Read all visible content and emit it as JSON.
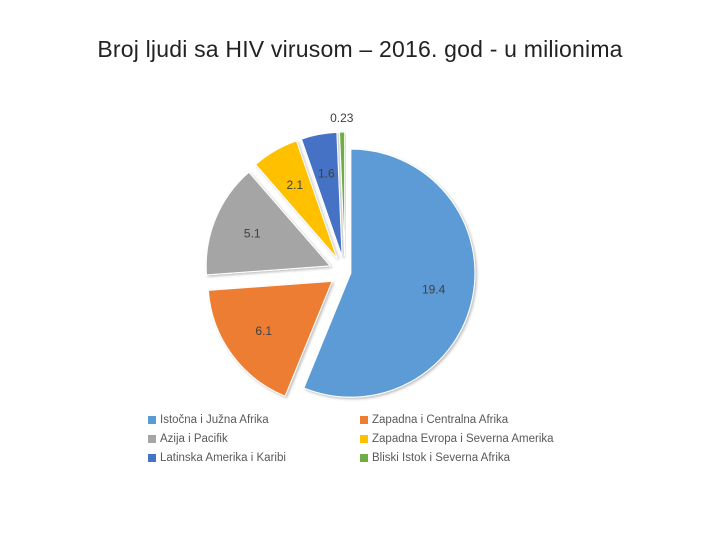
{
  "title": "Broj ljudi sa HIV virusom – 2016. god - u milionima",
  "chart_data": {
    "type": "pie",
    "title": "Broj ljudi sa HIV virusom – 2016. god - u milionima",
    "exploded": true,
    "legend_position": "bottom",
    "slices": [
      {
        "label": "Istočna i Južna Afrika",
        "value": 19.4,
        "display": "19.4",
        "color": "#5b9bd5"
      },
      {
        "label": "Zapadna i Centralna Afrika",
        "value": 6.1,
        "display": "6.1",
        "color": "#ed7d31"
      },
      {
        "label": "Azija i Pacifik",
        "value": 5.1,
        "display": "5.1",
        "color": "#a5a5a5"
      },
      {
        "label": "Zapadna Evropa i Severna Amerika",
        "value": 2.1,
        "display": "2.1",
        "color": "#ffc000"
      },
      {
        "label": "Latinska Amerika i Karibi",
        "value": 1.6,
        "display": "1.6",
        "color": "#4472c4"
      },
      {
        "label": "Bliski Istok i Severna Afrika",
        "value": 0.23,
        "display": "0.23",
        "color": "#70ad47"
      }
    ]
  }
}
